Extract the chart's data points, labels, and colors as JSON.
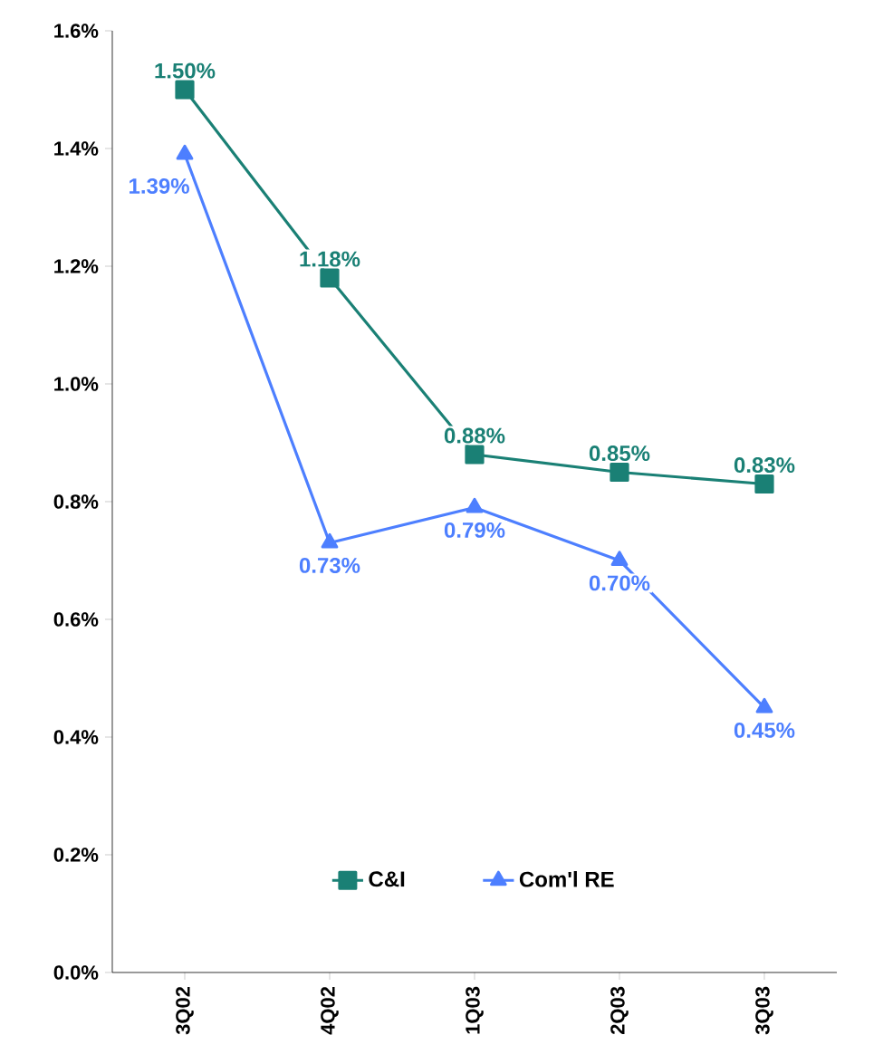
{
  "chart_data": {
    "type": "line",
    "categories": [
      "3Q02",
      "4Q02",
      "1Q03",
      "2Q03",
      "3Q03"
    ],
    "series": [
      {
        "name": "C&I",
        "color": "#1a8075",
        "marker": "square",
        "values": [
          1.5,
          1.18,
          0.88,
          0.85,
          0.83
        ],
        "value_labels": [
          "1.50%",
          "1.18%",
          "0.88%",
          "0.85%",
          "0.83%"
        ]
      },
      {
        "name": "Com'l RE",
        "color": "#4d7fff",
        "marker": "triangle",
        "values": [
          1.39,
          0.73,
          0.79,
          0.7,
          0.45
        ],
        "value_labels": [
          "1.39%",
          "0.73%",
          "0.79%",
          "0.70%",
          "0.45%"
        ]
      }
    ],
    "ylim": [
      0,
      1.6
    ],
    "yticks": [
      {
        "value": 0,
        "label": "0.0%"
      },
      {
        "value": 0.2,
        "label": "0.2%"
      },
      {
        "value": 0.4,
        "label": "0.4%"
      },
      {
        "value": 0.6,
        "label": "0.6%"
      },
      {
        "value": 0.8,
        "label": "0.8%"
      },
      {
        "value": 1.0,
        "label": "1.0%"
      },
      {
        "value": 1.2,
        "label": "1.2%"
      },
      {
        "value": 1.4,
        "label": "1.4%"
      },
      {
        "value": 1.6,
        "label": "1.6%"
      }
    ],
    "legend": "bottom",
    "grid": false
  }
}
